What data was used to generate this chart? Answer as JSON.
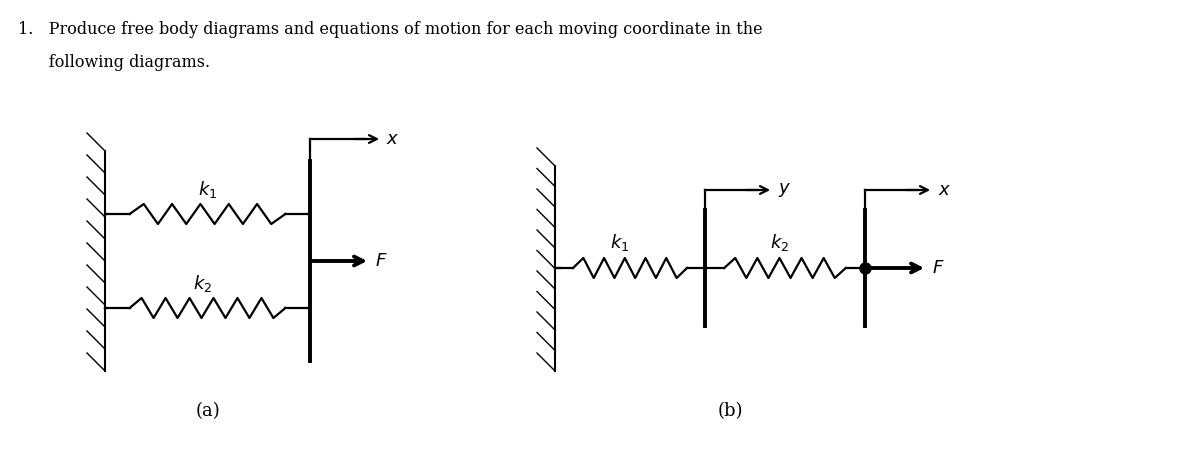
{
  "bg_color": "#ffffff",
  "label_a": "(a)",
  "label_b": "(b)",
  "k1_label": "$k_1$",
  "k2_label": "$k_2$",
  "F_label": "$F$",
  "x_label": "$x$",
  "y_label": "$y$",
  "title_line1": "1.   Produce free body diagrams and equations of motion for each moving coordinate in the",
  "title_line2": "      following diagrams."
}
